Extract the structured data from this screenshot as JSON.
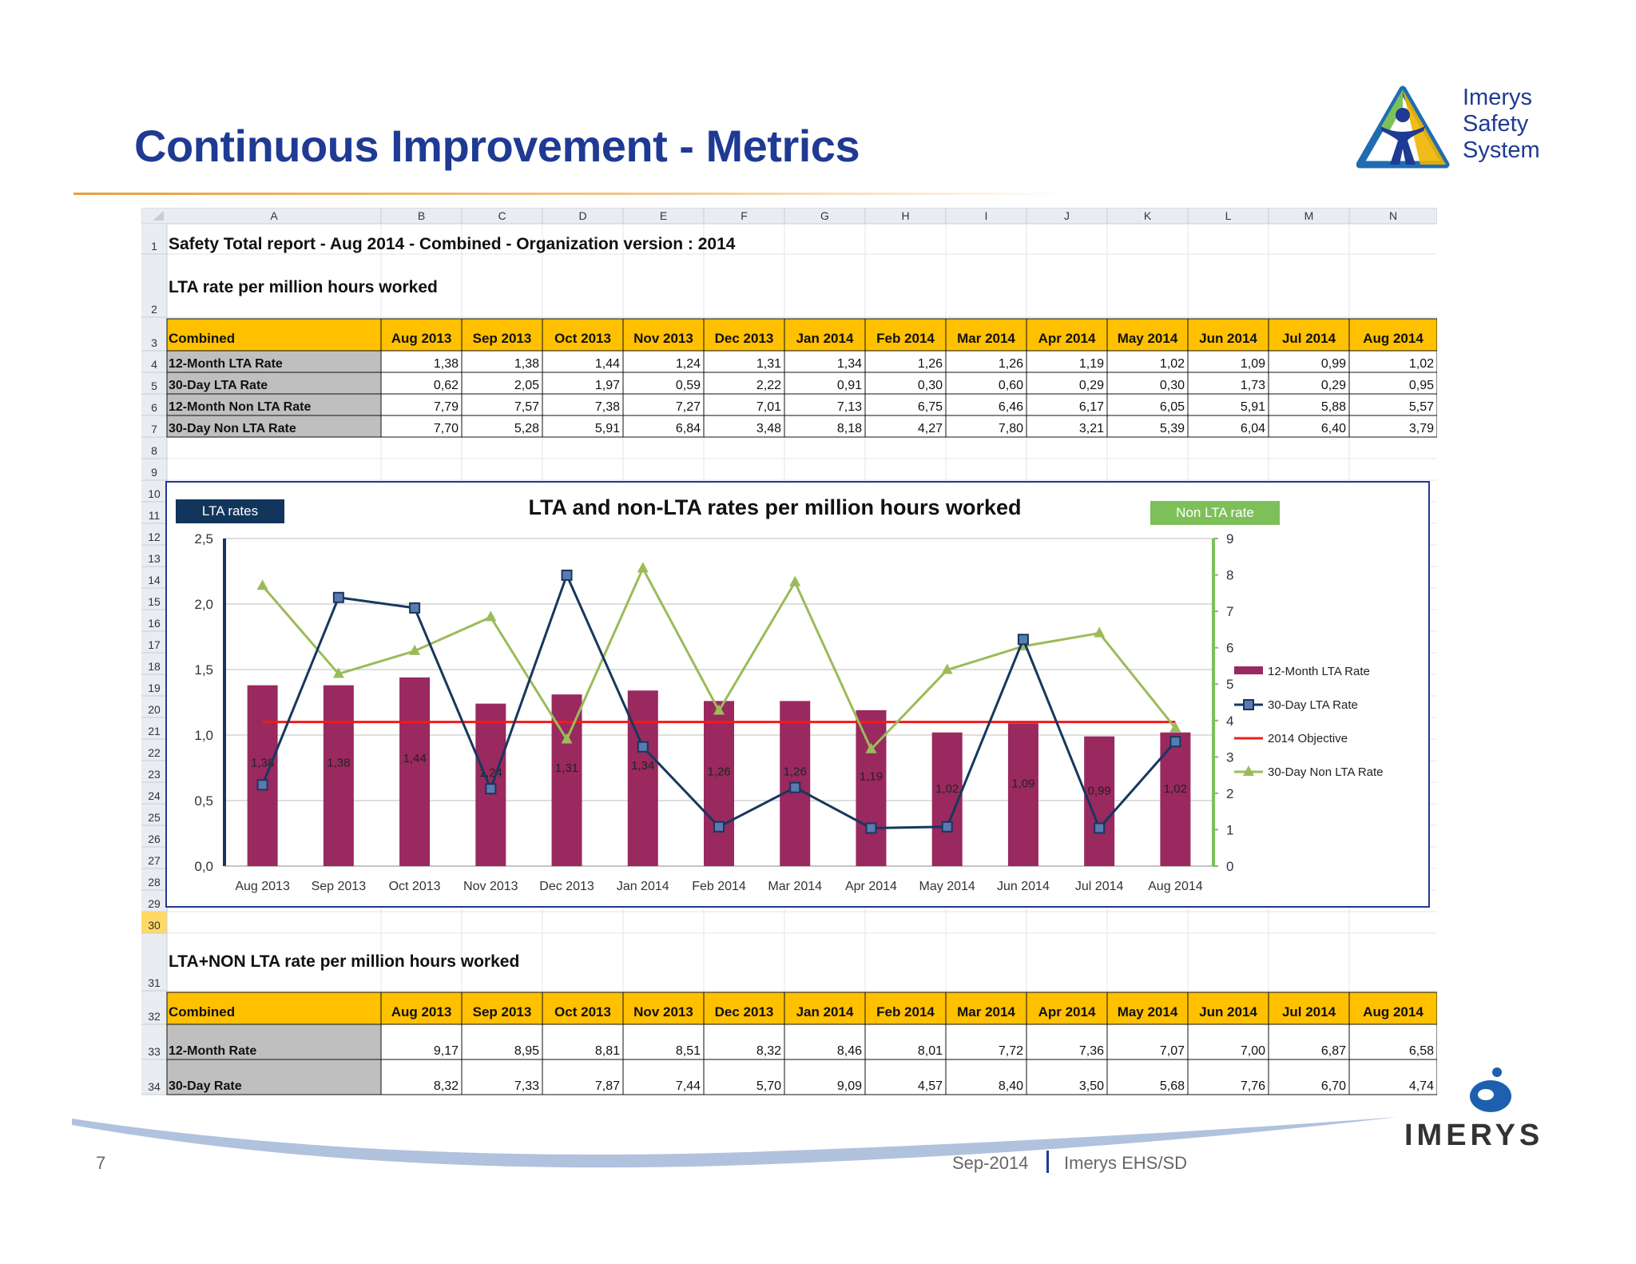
{
  "slide": {
    "title": "Continuous Improvement - Metrics",
    "page_number": "7",
    "footer_date": "Sep-2014",
    "footer_org": "Imerys EHS/SD",
    "brand_logo_text": [
      "Imerys",
      "Safety",
      "System"
    ],
    "corporate_logo_text": "IMERYS"
  },
  "sheet": {
    "columns": [
      "A",
      "B",
      "C",
      "D",
      "E",
      "F",
      "G",
      "H",
      "I",
      "J",
      "K",
      "L",
      "M",
      "N"
    ],
    "report_title": "Safety Total report - Aug 2014 - Combined - Organization version : 2014",
    "section1_title": "LTA rate per million hours worked",
    "section2_title": "LTA+NON LTA rate per million hours worked",
    "months": [
      "Aug 2013",
      "Sep 2013",
      "Oct 2013",
      "Nov 2013",
      "Dec 2013",
      "Jan 2014",
      "Feb 2014",
      "Mar 2014",
      "Apr 2014",
      "May 2014",
      "Jun 2014",
      "Jul 2014",
      "Aug 2014"
    ],
    "table1": {
      "header_label": "Combined",
      "rows": [
        {
          "label": "12-Month LTA Rate",
          "values": [
            "1,38",
            "1,38",
            "1,44",
            "1,24",
            "1,31",
            "1,34",
            "1,26",
            "1,26",
            "1,19",
            "1,02",
            "1,09",
            "0,99",
            "1,02"
          ]
        },
        {
          "label": "30-Day LTA Rate",
          "values": [
            "0,62",
            "2,05",
            "1,97",
            "0,59",
            "2,22",
            "0,91",
            "0,30",
            "0,60",
            "0,29",
            "0,30",
            "1,73",
            "0,29",
            "0,95"
          ]
        },
        {
          "label": "12-Month Non LTA Rate",
          "values": [
            "7,79",
            "7,57",
            "7,38",
            "7,27",
            "7,01",
            "7,13",
            "6,75",
            "6,46",
            "6,17",
            "6,05",
            "5,91",
            "5,88",
            "5,57"
          ]
        },
        {
          "label": "30-Day Non LTA Rate",
          "values": [
            "7,70",
            "5,28",
            "5,91",
            "6,84",
            "3,48",
            "8,18",
            "4,27",
            "7,80",
            "3,21",
            "5,39",
            "6,04",
            "6,40",
            "3,79"
          ]
        }
      ]
    },
    "table2": {
      "header_label": "Combined",
      "rows": [
        {
          "label": "12-Month Rate",
          "values": [
            "9,17",
            "8,95",
            "8,81",
            "8,51",
            "8,32",
            "8,46",
            "8,01",
            "7,72",
            "7,36",
            "7,07",
            "7,00",
            "6,87",
            "6,58"
          ]
        },
        {
          "label": "30-Day Rate",
          "values": [
            "8,32",
            "7,33",
            "7,87",
            "7,44",
            "5,70",
            "9,09",
            "4,57",
            "8,40",
            "3,50",
            "5,68",
            "7,76",
            "6,70",
            "4,74"
          ]
        }
      ]
    }
  },
  "chart_data": {
    "type": "bar",
    "title": "LTA and non-LTA rates per million hours worked",
    "left_axis_tag": "LTA rates",
    "right_axis_tag": "Non LTA rate",
    "categories": [
      "Aug 2013",
      "Sep 2013",
      "Oct 2013",
      "Nov 2013",
      "Dec 2013",
      "Jan 2014",
      "Feb 2014",
      "Mar 2014",
      "Apr 2014",
      "May 2014",
      "Jun 2014",
      "Jul 2014",
      "Aug 2014"
    ],
    "ylim": [
      0,
      2.5
    ],
    "y_ticks": [
      "0,0",
      "0,5",
      "1,0",
      "1,5",
      "2,0",
      "2,5"
    ],
    "y2lim": [
      0,
      9
    ],
    "y2_ticks": [
      "0",
      "1",
      "2",
      "3",
      "4",
      "5",
      "6",
      "7",
      "8",
      "9"
    ],
    "series": [
      {
        "name": "12-Month LTA Rate",
        "kind": "bar",
        "axis": "left",
        "color": "#99295f",
        "values": [
          1.38,
          1.38,
          1.44,
          1.24,
          1.31,
          1.34,
          1.26,
          1.26,
          1.19,
          1.02,
          1.09,
          0.99,
          1.02
        ],
        "labels": [
          "1,38",
          "1,38",
          "1,44",
          "1,24",
          "1,31",
          "1,34",
          "1,26",
          "1,26",
          "1,19",
          "1,02",
          "1,09",
          "0,99",
          "1,02"
        ]
      },
      {
        "name": "30-Day LTA Rate",
        "kind": "line",
        "axis": "left",
        "color": "#17375e",
        "values": [
          0.62,
          2.05,
          1.97,
          0.59,
          2.22,
          0.91,
          0.3,
          0.6,
          0.29,
          0.3,
          1.73,
          0.29,
          0.95
        ]
      },
      {
        "name": "2014 Objective",
        "kind": "line",
        "axis": "left",
        "color": "#ee1c1c",
        "values": [
          1.1,
          1.1,
          1.1,
          1.1,
          1.1,
          1.1,
          1.1,
          1.1,
          1.1,
          1.1,
          1.1,
          1.1,
          1.1
        ]
      },
      {
        "name": "30-Day Non LTA Rate",
        "kind": "line",
        "axis": "right",
        "color": "#9bbb59",
        "values": [
          7.7,
          5.28,
          5.91,
          6.84,
          3.48,
          8.18,
          4.27,
          7.8,
          3.21,
          5.39,
          6.04,
          6.4,
          3.79
        ]
      }
    ],
    "legend_position": "right"
  },
  "colors": {
    "title_blue": "#1f3a93",
    "header_yellow": "#ffc000",
    "label_grey": "#bfbfbf",
    "bar_purple": "#99295f",
    "line_navy": "#17375e",
    "line_green": "#9bbb59",
    "objective_red": "#ee1c1c"
  }
}
